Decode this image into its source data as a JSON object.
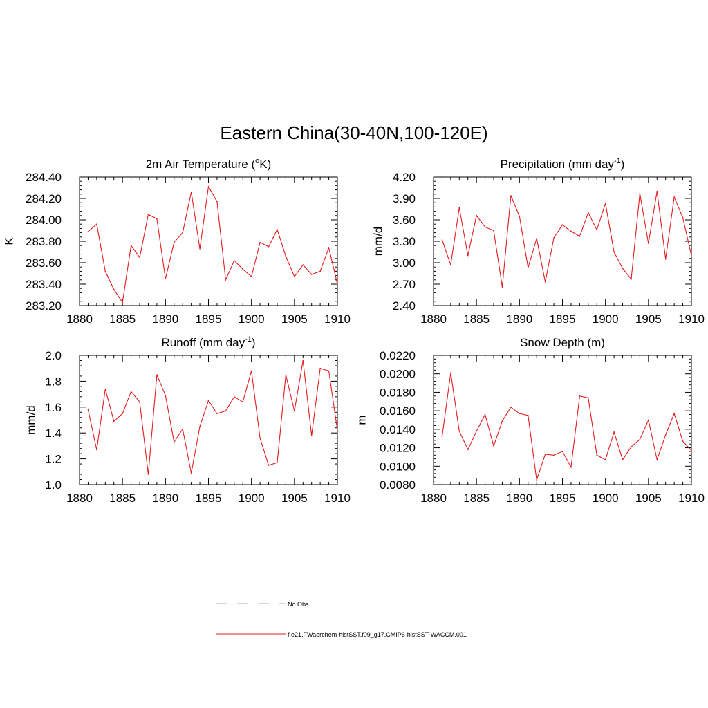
{
  "main_title": "Eastern China(30-40N,100-120E)",
  "chart_data": [
    {
      "type": "line",
      "title": "2m Air Temperature (",
      "title_sup": "o",
      "title_tail": "K)",
      "ylabel": "K",
      "xlim": [
        1880,
        1910
      ],
      "ylim": [
        283.2,
        284.4
      ],
      "xticks": [
        1880,
        1885,
        1890,
        1895,
        1900,
        1905,
        1910
      ],
      "yticks": [
        283.2,
        283.4,
        283.6,
        283.8,
        284.0,
        284.2,
        284.4
      ],
      "ytick_labels": [
        "283.20",
        "283.40",
        "283.60",
        "283.80",
        "284.00",
        "284.20",
        "284.40"
      ],
      "x": [
        1881,
        1882,
        1883,
        1884,
        1885,
        1886,
        1887,
        1888,
        1889,
        1890,
        1891,
        1892,
        1893,
        1894,
        1895,
        1896,
        1897,
        1898,
        1899,
        1900,
        1901,
        1902,
        1903,
        1904,
        1905,
        1906,
        1907,
        1908,
        1909,
        1910
      ],
      "series": [
        {
          "values": [
            283.89,
            283.96,
            283.52,
            283.35,
            283.23,
            283.76,
            283.65,
            284.05,
            284.01,
            283.45,
            283.79,
            283.88,
            284.26,
            283.73,
            284.31,
            284.17,
            283.44,
            283.62,
            283.54,
            283.47,
            283.79,
            283.75,
            283.91,
            283.66,
            283.47,
            283.58,
            283.49,
            283.52,
            283.74,
            283.4
          ],
          "color": "#e41a1c"
        }
      ]
    },
    {
      "type": "line",
      "title": "Precipitation (mm day",
      "title_sup": "-1",
      "title_tail": ")",
      "ylabel": "mm/d",
      "xlim": [
        1880,
        1910
      ],
      "ylim": [
        2.4,
        4.2
      ],
      "xticks": [
        1880,
        1885,
        1890,
        1895,
        1900,
        1905,
        1910
      ],
      "yticks": [
        2.4,
        2.7,
        3.0,
        3.3,
        3.6,
        3.9,
        4.2
      ],
      "ytick_labels": [
        "2.40",
        "2.70",
        "3.00",
        "3.30",
        "3.60",
        "3.90",
        "4.20"
      ],
      "x": [
        1881,
        1882,
        1883,
        1884,
        1885,
        1886,
        1887,
        1888,
        1889,
        1890,
        1891,
        1892,
        1893,
        1894,
        1895,
        1896,
        1897,
        1898,
        1899,
        1900,
        1901,
        1902,
        1903,
        1904,
        1905,
        1906,
        1907,
        1908,
        1909,
        1910
      ],
      "series": [
        {
          "values": [
            3.32,
            2.97,
            3.77,
            3.1,
            3.66,
            3.5,
            3.45,
            2.66,
            3.94,
            3.65,
            2.93,
            3.34,
            2.73,
            3.35,
            3.53,
            3.44,
            3.37,
            3.7,
            3.46,
            3.83,
            3.15,
            2.92,
            2.77,
            3.97,
            3.27,
            4.0,
            3.05,
            3.92,
            3.63,
            3.1
          ],
          "color": "#e41a1c"
        }
      ]
    },
    {
      "type": "line",
      "title": "Runoff (mm day",
      "title_sup": "-1",
      "title_tail": ")",
      "ylabel": "mm/d",
      "xlim": [
        1880,
        1910
      ],
      "ylim": [
        1.0,
        2.0
      ],
      "xticks": [
        1880,
        1885,
        1890,
        1895,
        1900,
        1905,
        1910
      ],
      "yticks": [
        1.0,
        1.2,
        1.4,
        1.6,
        1.8,
        2.0
      ],
      "ytick_labels": [
        "1.0",
        "1.2",
        "1.4",
        "1.6",
        "1.8",
        "2.0"
      ],
      "x": [
        1881,
        1882,
        1883,
        1884,
        1885,
        1886,
        1887,
        1888,
        1889,
        1890,
        1891,
        1892,
        1893,
        1894,
        1895,
        1896,
        1897,
        1898,
        1899,
        1900,
        1901,
        1902,
        1903,
        1904,
        1905,
        1906,
        1907,
        1908,
        1909,
        1910
      ],
      "series": [
        {
          "values": [
            1.58,
            1.27,
            1.74,
            1.49,
            1.55,
            1.72,
            1.64,
            1.08,
            1.85,
            1.69,
            1.33,
            1.43,
            1.09,
            1.45,
            1.65,
            1.55,
            1.57,
            1.68,
            1.64,
            1.88,
            1.36,
            1.15,
            1.17,
            1.85,
            1.57,
            1.96,
            1.38,
            1.9,
            1.88,
            1.42
          ],
          "color": "#e41a1c"
        }
      ]
    },
    {
      "type": "line",
      "title": "Snow Depth (m)",
      "title_sup": "",
      "title_tail": "",
      "ylabel": "m",
      "xlim": [
        1880,
        1910
      ],
      "ylim": [
        0.008,
        0.022
      ],
      "xticks": [
        1880,
        1885,
        1890,
        1895,
        1900,
        1905,
        1910
      ],
      "yticks": [
        0.008,
        0.01,
        0.012,
        0.014,
        0.016,
        0.018,
        0.02,
        0.022
      ],
      "ytick_labels": [
        "0.0080",
        "0.0100",
        "0.0120",
        "0.0140",
        "0.0160",
        "0.0180",
        "0.0200",
        "0.0220"
      ],
      "x": [
        1881,
        1882,
        1883,
        1884,
        1885,
        1886,
        1887,
        1888,
        1889,
        1890,
        1891,
        1892,
        1893,
        1894,
        1895,
        1896,
        1897,
        1898,
        1899,
        1900,
        1901,
        1902,
        1903,
        1904,
        1905,
        1906,
        1907,
        1908,
        1909,
        1910
      ],
      "series": [
        {
          "values": [
            0.0132,
            0.0201,
            0.0138,
            0.0118,
            0.0138,
            0.0156,
            0.0122,
            0.0149,
            0.0164,
            0.0157,
            0.0155,
            0.0085,
            0.0113,
            0.0112,
            0.0116,
            0.0099,
            0.0176,
            0.0174,
            0.0112,
            0.0107,
            0.0137,
            0.0107,
            0.0121,
            0.0129,
            0.015,
            0.0107,
            0.0134,
            0.0157,
            0.0127,
            0.0117
          ],
          "color": "#e41a1c"
        }
      ]
    }
  ],
  "legend": [
    {
      "label": "No Obs",
      "color": "#aaaaee",
      "dash": true
    },
    {
      "label": "f.e21.FWaerchem-histSST.f09_g17.CMIP6-histSST-WACCM.001",
      "color": "#e41a1c",
      "dash": false
    }
  ]
}
